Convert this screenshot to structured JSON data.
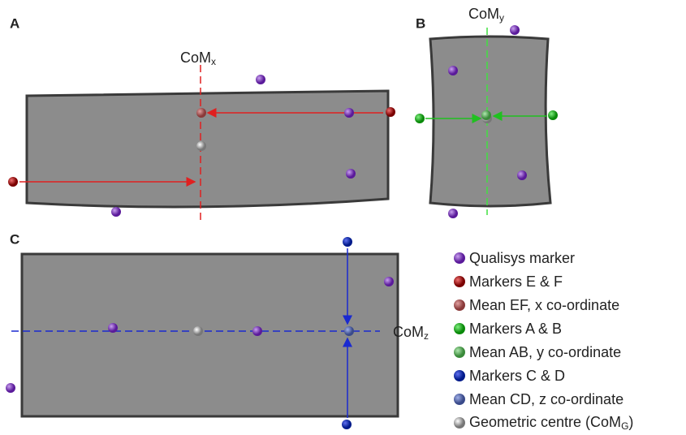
{
  "panels": {
    "a": {
      "label": "A",
      "axis": {
        "base": "CoM",
        "sub": "x"
      }
    },
    "b": {
      "label": "B",
      "axis": {
        "base": "CoM",
        "sub": "y"
      }
    },
    "c": {
      "label": "C",
      "axis": {
        "base": "CoM",
        "sub": "z"
      }
    }
  },
  "legend": {
    "items": [
      {
        "text": "Qualisys marker"
      },
      {
        "text": "Markers E & F"
      },
      {
        "text": "Mean EF, x co-ordinate"
      },
      {
        "text": "Markers A & B"
      },
      {
        "text": "Mean AB, y co-ordinate"
      },
      {
        "text": "Markers C & D"
      },
      {
        "text": "Mean CD, z co-ordinate"
      },
      {
        "text": "Geometric centre (CoM",
        "sub": "G",
        "suffix": ")"
      }
    ]
  }
}
